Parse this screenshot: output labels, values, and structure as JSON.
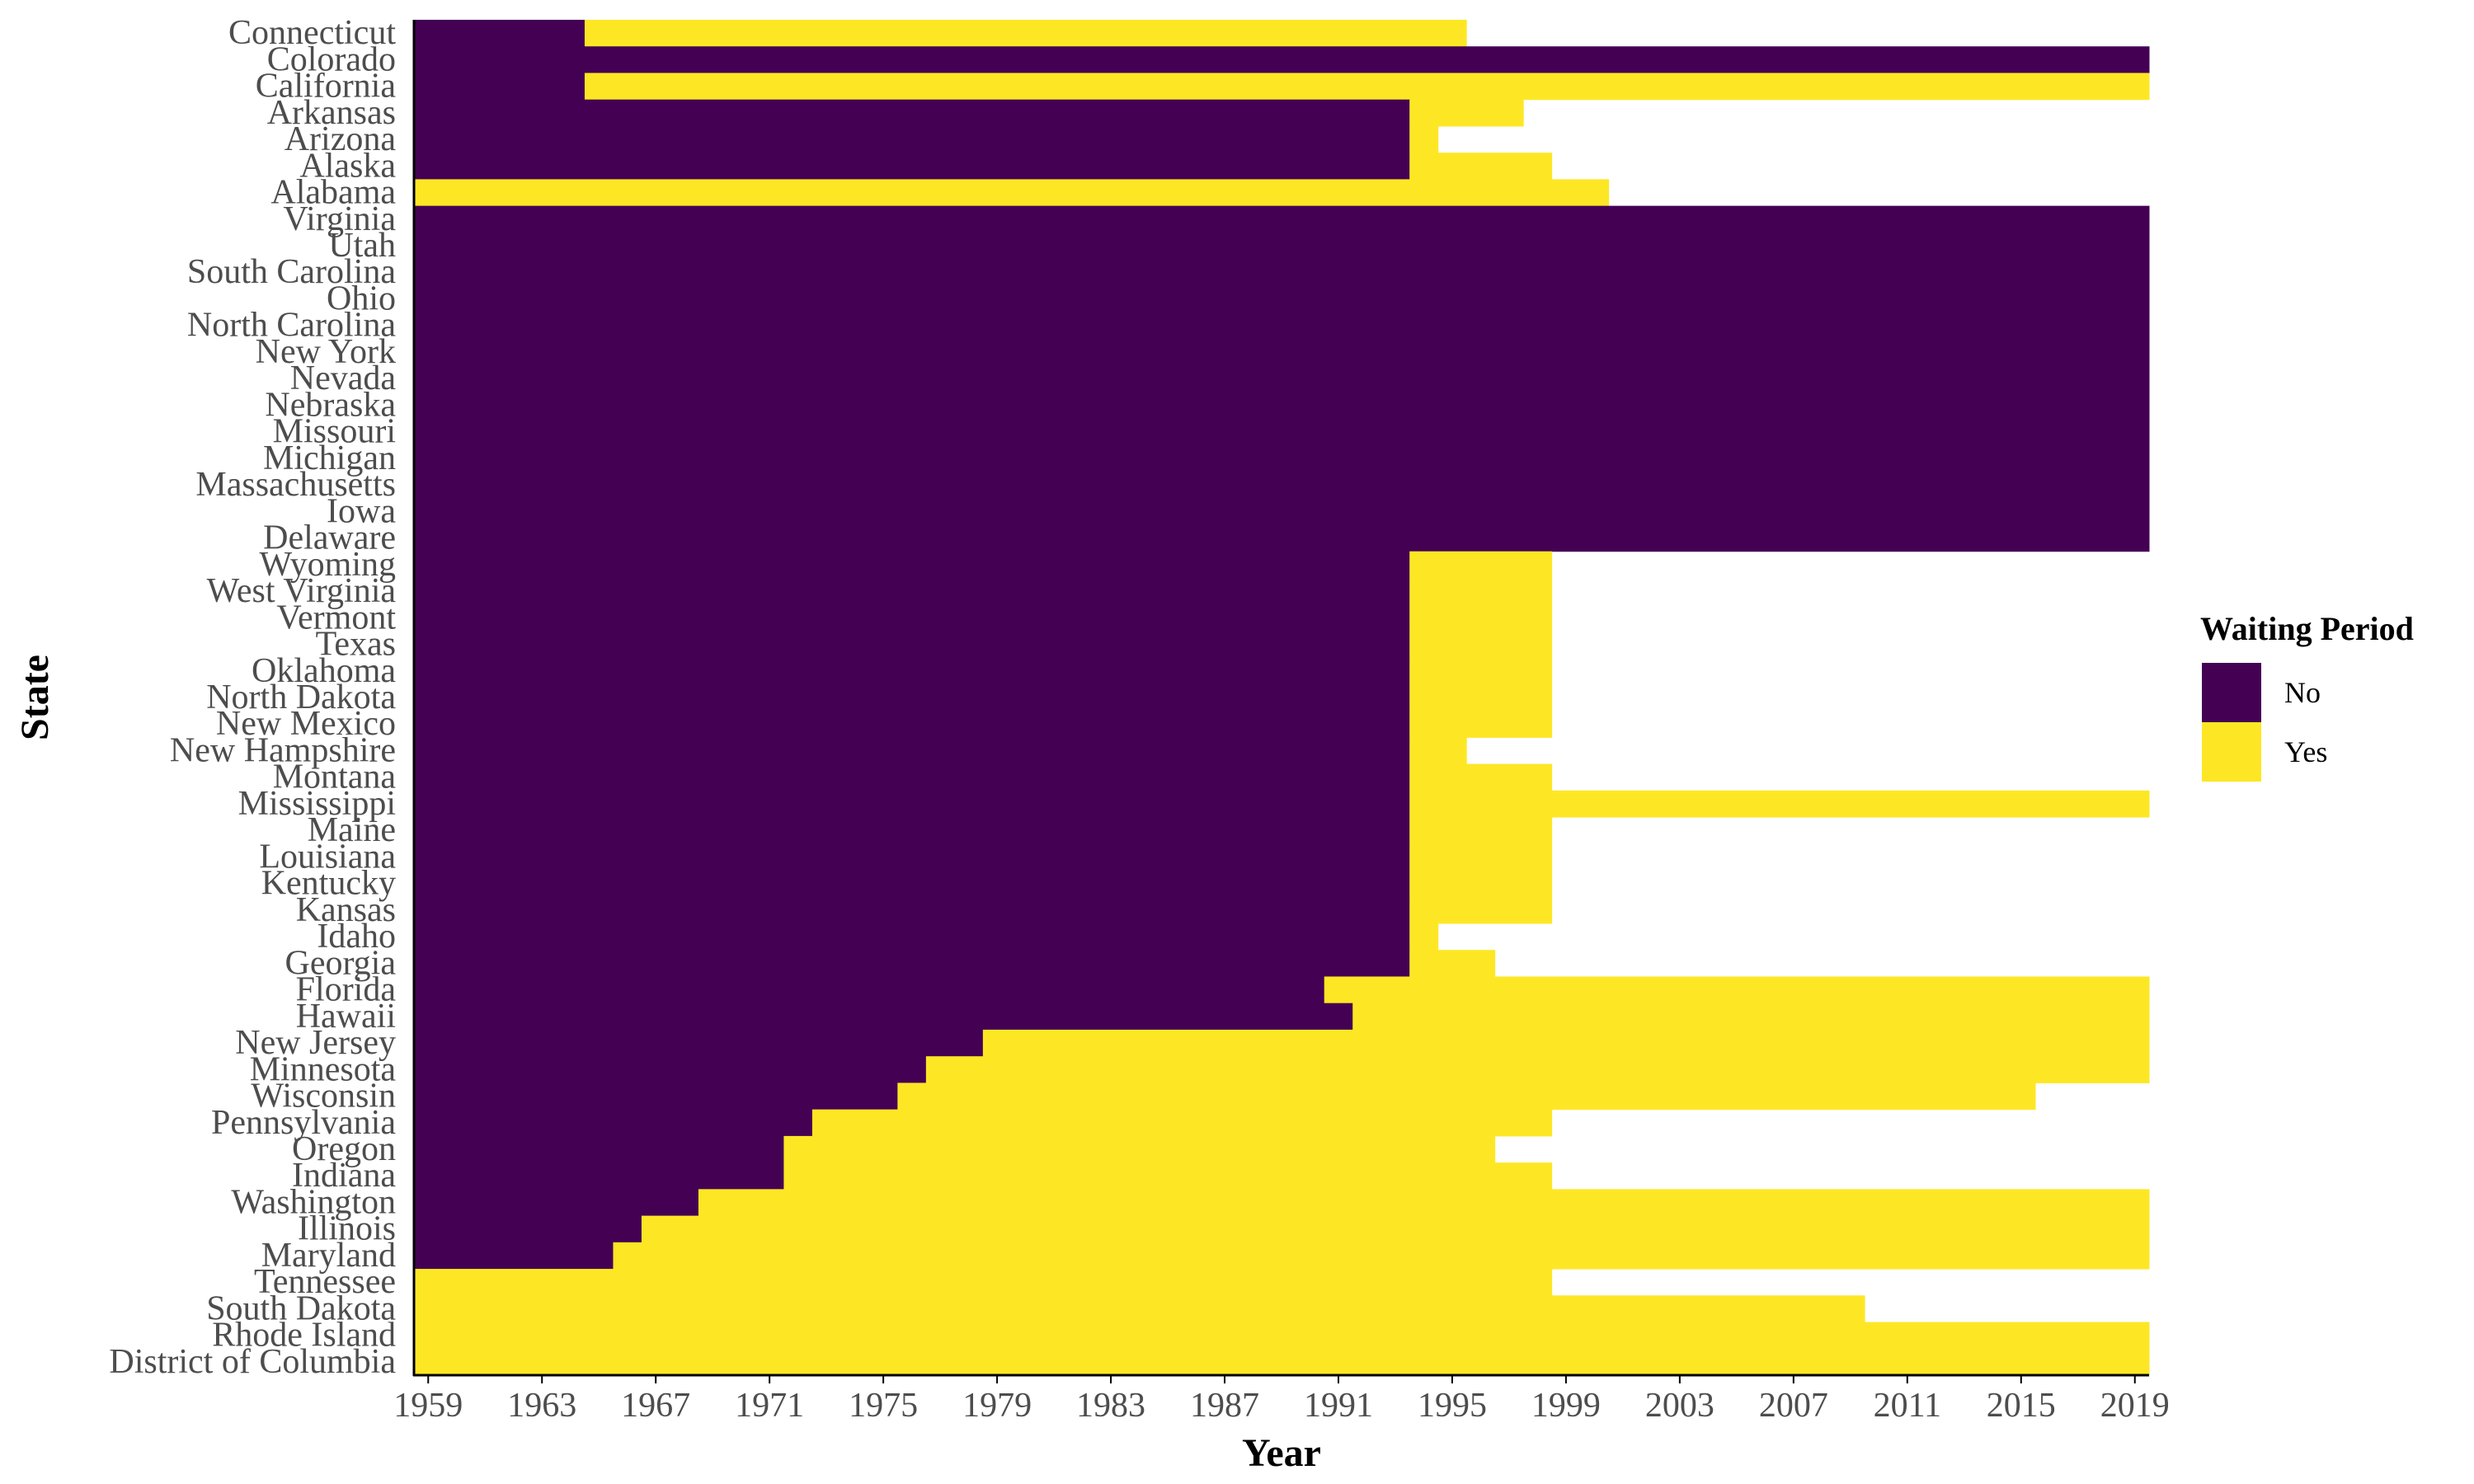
{
  "chart_data": {
    "type": "heatmap",
    "xlabel": "Year",
    "ylabel": "State",
    "x_range": [
      1959,
      2019
    ],
    "x_ticks": [
      "1959",
      "1963",
      "1967",
      "1971",
      "1975",
      "1979",
      "1983",
      "1987",
      "1991",
      "1995",
      "1999",
      "2003",
      "2007",
      "2011",
      "2015",
      "2019"
    ],
    "legend": {
      "title": "Waiting Period",
      "placement": "right",
      "items": [
        {
          "label": "No",
          "color": "#440154"
        },
        {
          "label": "Yes",
          "color": "#FDE725"
        }
      ]
    },
    "colors": {
      "No": "#440154",
      "Yes": "#FDE725"
    },
    "rows": [
      {
        "state": "Connecticut",
        "segments": [
          {
            "start": 1959,
            "end": 1964,
            "value": "No"
          },
          {
            "start": 1965,
            "end": 1995,
            "value": "Yes"
          }
        ]
      },
      {
        "state": "Colorado",
        "segments": [
          {
            "start": 1959,
            "end": 2019,
            "value": "No"
          }
        ]
      },
      {
        "state": "California",
        "segments": [
          {
            "start": 1959,
            "end": 1964,
            "value": "No"
          },
          {
            "start": 1965,
            "end": 2019,
            "value": "Yes"
          }
        ]
      },
      {
        "state": "Arkansas",
        "segments": [
          {
            "start": 1959,
            "end": 1993,
            "value": "No"
          },
          {
            "start": 1994,
            "end": 1997,
            "value": "Yes"
          }
        ]
      },
      {
        "state": "Arizona",
        "segments": [
          {
            "start": 1959,
            "end": 1993,
            "value": "No"
          },
          {
            "start": 1994,
            "end": 1994,
            "value": "Yes"
          }
        ]
      },
      {
        "state": "Alaska",
        "segments": [
          {
            "start": 1959,
            "end": 1993,
            "value": "No"
          },
          {
            "start": 1994,
            "end": 1998,
            "value": "Yes"
          }
        ]
      },
      {
        "state": "Alabama",
        "segments": [
          {
            "start": 1959,
            "end": 2000,
            "value": "Yes"
          }
        ]
      },
      {
        "state": "Virginia",
        "segments": [
          {
            "start": 1959,
            "end": 2019,
            "value": "No"
          }
        ]
      },
      {
        "state": "Utah",
        "segments": [
          {
            "start": 1959,
            "end": 2019,
            "value": "No"
          }
        ]
      },
      {
        "state": "South Carolina",
        "segments": [
          {
            "start": 1959,
            "end": 2019,
            "value": "No"
          }
        ]
      },
      {
        "state": "Ohio",
        "segments": [
          {
            "start": 1959,
            "end": 2019,
            "value": "No"
          }
        ]
      },
      {
        "state": "North Carolina",
        "segments": [
          {
            "start": 1959,
            "end": 2019,
            "value": "No"
          }
        ]
      },
      {
        "state": "New York",
        "segments": [
          {
            "start": 1959,
            "end": 2019,
            "value": "No"
          }
        ]
      },
      {
        "state": "Nevada",
        "segments": [
          {
            "start": 1959,
            "end": 2019,
            "value": "No"
          }
        ]
      },
      {
        "state": "Nebraska",
        "segments": [
          {
            "start": 1959,
            "end": 2019,
            "value": "No"
          }
        ]
      },
      {
        "state": "Missouri",
        "segments": [
          {
            "start": 1959,
            "end": 2019,
            "value": "No"
          }
        ]
      },
      {
        "state": "Michigan",
        "segments": [
          {
            "start": 1959,
            "end": 2019,
            "value": "No"
          }
        ]
      },
      {
        "state": "Massachusetts",
        "segments": [
          {
            "start": 1959,
            "end": 2019,
            "value": "No"
          }
        ]
      },
      {
        "state": "Iowa",
        "segments": [
          {
            "start": 1959,
            "end": 2019,
            "value": "No"
          }
        ]
      },
      {
        "state": "Delaware",
        "segments": [
          {
            "start": 1959,
            "end": 2019,
            "value": "No"
          }
        ]
      },
      {
        "state": "Wyoming",
        "segments": [
          {
            "start": 1959,
            "end": 1993,
            "value": "No"
          },
          {
            "start": 1994,
            "end": 1998,
            "value": "Yes"
          }
        ]
      },
      {
        "state": "West Virginia",
        "segments": [
          {
            "start": 1959,
            "end": 1993,
            "value": "No"
          },
          {
            "start": 1994,
            "end": 1998,
            "value": "Yes"
          }
        ]
      },
      {
        "state": "Vermont",
        "segments": [
          {
            "start": 1959,
            "end": 1993,
            "value": "No"
          },
          {
            "start": 1994,
            "end": 1998,
            "value": "Yes"
          }
        ]
      },
      {
        "state": "Texas",
        "segments": [
          {
            "start": 1959,
            "end": 1993,
            "value": "No"
          },
          {
            "start": 1994,
            "end": 1998,
            "value": "Yes"
          }
        ]
      },
      {
        "state": "Oklahoma",
        "segments": [
          {
            "start": 1959,
            "end": 1993,
            "value": "No"
          },
          {
            "start": 1994,
            "end": 1998,
            "value": "Yes"
          }
        ]
      },
      {
        "state": "North Dakota",
        "segments": [
          {
            "start": 1959,
            "end": 1993,
            "value": "No"
          },
          {
            "start": 1994,
            "end": 1998,
            "value": "Yes"
          }
        ]
      },
      {
        "state": "New Mexico",
        "segments": [
          {
            "start": 1959,
            "end": 1993,
            "value": "No"
          },
          {
            "start": 1994,
            "end": 1998,
            "value": "Yes"
          }
        ]
      },
      {
        "state": "New Hampshire",
        "segments": [
          {
            "start": 1959,
            "end": 1993,
            "value": "No"
          },
          {
            "start": 1994,
            "end": 1995,
            "value": "Yes"
          }
        ]
      },
      {
        "state": "Montana",
        "segments": [
          {
            "start": 1959,
            "end": 1993,
            "value": "No"
          },
          {
            "start": 1994,
            "end": 1998,
            "value": "Yes"
          }
        ]
      },
      {
        "state": "Mississippi",
        "segments": [
          {
            "start": 1959,
            "end": 1993,
            "value": "No"
          },
          {
            "start": 1994,
            "end": 2019,
            "value": "Yes"
          }
        ]
      },
      {
        "state": "Maine",
        "segments": [
          {
            "start": 1959,
            "end": 1993,
            "value": "No"
          },
          {
            "start": 1994,
            "end": 1998,
            "value": "Yes"
          }
        ]
      },
      {
        "state": "Louisiana",
        "segments": [
          {
            "start": 1959,
            "end": 1993,
            "value": "No"
          },
          {
            "start": 1994,
            "end": 1998,
            "value": "Yes"
          }
        ]
      },
      {
        "state": "Kentucky",
        "segments": [
          {
            "start": 1959,
            "end": 1993,
            "value": "No"
          },
          {
            "start": 1994,
            "end": 1998,
            "value": "Yes"
          }
        ]
      },
      {
        "state": "Kansas",
        "segments": [
          {
            "start": 1959,
            "end": 1993,
            "value": "No"
          },
          {
            "start": 1994,
            "end": 1998,
            "value": "Yes"
          }
        ]
      },
      {
        "state": "Idaho",
        "segments": [
          {
            "start": 1959,
            "end": 1993,
            "value": "No"
          },
          {
            "start": 1994,
            "end": 1994,
            "value": "Yes"
          }
        ]
      },
      {
        "state": "Georgia",
        "segments": [
          {
            "start": 1959,
            "end": 1993,
            "value": "No"
          },
          {
            "start": 1994,
            "end": 1996,
            "value": "Yes"
          }
        ]
      },
      {
        "state": "Florida",
        "segments": [
          {
            "start": 1959,
            "end": 1990,
            "value": "No"
          },
          {
            "start": 1991,
            "end": 2019,
            "value": "Yes"
          }
        ]
      },
      {
        "state": "Hawaii",
        "segments": [
          {
            "start": 1959,
            "end": 1991,
            "value": "No"
          },
          {
            "start": 1992,
            "end": 2019,
            "value": "Yes"
          }
        ]
      },
      {
        "state": "New Jersey",
        "segments": [
          {
            "start": 1959,
            "end": 1978,
            "value": "No"
          },
          {
            "start": 1979,
            "end": 2019,
            "value": "Yes"
          }
        ]
      },
      {
        "state": "Minnesota",
        "segments": [
          {
            "start": 1959,
            "end": 1976,
            "value": "No"
          },
          {
            "start": 1977,
            "end": 2019,
            "value": "Yes"
          }
        ]
      },
      {
        "state": "Wisconsin",
        "segments": [
          {
            "start": 1959,
            "end": 1975,
            "value": "No"
          },
          {
            "start": 1976,
            "end": 2015,
            "value": "Yes"
          }
        ]
      },
      {
        "state": "Pennsylvania",
        "segments": [
          {
            "start": 1959,
            "end": 1972,
            "value": "No"
          },
          {
            "start": 1973,
            "end": 1998,
            "value": "Yes"
          }
        ]
      },
      {
        "state": "Oregon",
        "segments": [
          {
            "start": 1959,
            "end": 1971,
            "value": "No"
          },
          {
            "start": 1972,
            "end": 1996,
            "value": "Yes"
          }
        ]
      },
      {
        "state": "Indiana",
        "segments": [
          {
            "start": 1959,
            "end": 1971,
            "value": "No"
          },
          {
            "start": 1972,
            "end": 1972,
            "value": "Yes"
          },
          {
            "start": 1973,
            "end": 1998,
            "value": "Yes"
          }
        ]
      },
      {
        "state": "Washington",
        "segments": [
          {
            "start": 1959,
            "end": 1968,
            "value": "No"
          },
          {
            "start": 1969,
            "end": 2019,
            "value": "Yes"
          }
        ]
      },
      {
        "state": "Illinois",
        "segments": [
          {
            "start": 1959,
            "end": 1966,
            "value": "No"
          },
          {
            "start": 1967,
            "end": 2019,
            "value": "Yes"
          }
        ]
      },
      {
        "state": "Maryland",
        "segments": [
          {
            "start": 1959,
            "end": 1965,
            "value": "No"
          },
          {
            "start": 1966,
            "end": 2019,
            "value": "Yes"
          }
        ]
      },
      {
        "state": "Tennessee",
        "segments": [
          {
            "start": 1959,
            "end": 1998,
            "value": "Yes"
          }
        ]
      },
      {
        "state": "South Dakota",
        "segments": [
          {
            "start": 1959,
            "end": 2009,
            "value": "Yes"
          }
        ]
      },
      {
        "state": "Rhode Island",
        "segments": [
          {
            "start": 1959,
            "end": 2019,
            "value": "Yes"
          }
        ]
      },
      {
        "state": "District of Columbia",
        "segments": [
          {
            "start": 1959,
            "end": 2019,
            "value": "Yes"
          }
        ]
      }
    ]
  }
}
